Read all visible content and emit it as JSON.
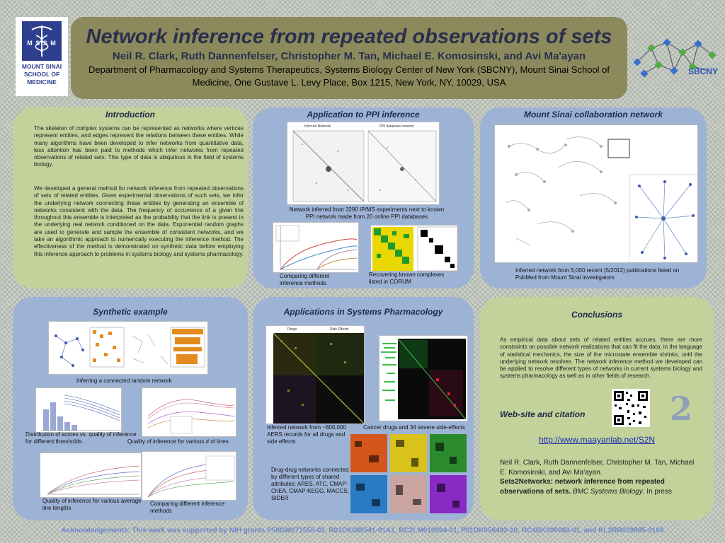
{
  "header": {
    "title": "Network inference from repeated observations of sets",
    "authors": "Neil R. Clark, Ruth Dannenfelser, Christopher M. Tan, Michael E. Komosinski, and Avi Ma'ayan",
    "affiliation": "Department of Pharmacology and Systems Therapeutics, Systems Biology Center of New York (SBCNY), Mount Sinai School of Medicine, One Gustave L. Levy Place, Box 1215, New York, NY, 10029, USA"
  },
  "logos": {
    "left_mark": "M S S M",
    "left_line1": "MOUNT SINAI",
    "left_line2": "SCHOOL OF",
    "left_line3": "MEDICINE",
    "right_text": "SBCNY"
  },
  "introduction": {
    "title": "Introduction",
    "p1": "The skeleton of complex systems can be represented as networks where vertices represent entities, and edges represent the relations between these entities. While many algorithms have been developed to infer networks from quantitative data, less attention has been paid to methods which infer networks from repeated observations of related sets. This type of data is ubiquitous in the field of systems biology.",
    "p2": "We developed a general method for network inference from repeated observations of sets of related entities. Given experimental observations of such sets, we infer the underlying network connecting these entities by generating an ensemble of networks consistent with the data. The frequency of occurrence of a given link throughout this ensemble is interpreted as the probability that the link is present in the underlying real network conditioned on the data. Exponential random graphs are used to generate and sample the ensemble of consistent networks, and we take an algorithmic approach to numerically executing the inference method. The effectiveness of the method is demonstrated on synthetic data before employing this inference approach to problems in systems biology and systems pharmacology."
  },
  "ppi": {
    "title": "Application to PPI inference",
    "fig1_label_a": "Inferred Network",
    "fig1_label_b": "PPI database network",
    "cap1": "Network inferred from 3290 IP/MS experiments next to known PPI network made from 20 online PPI databases",
    "cap2": "Comparing different inference methods",
    "cap3": "Recovering known complexes listed in CORUM"
  },
  "collab": {
    "title": "Mount Sinai collaboration network",
    "cap": "Inferred network from 5,000 recent (5/2012) publications listed on PubMed from Mount Sinai investigators"
  },
  "synthetic": {
    "title": "Synthetic example",
    "cap1": "Inferring a connected random network",
    "cap2": "Distribution of scores vs. quality of inference for different thresholds",
    "cap3": "Quality of inference for various # of lines",
    "cap4": "Quality of inference for various average line lengths",
    "cap5": "Comparing different inference methods"
  },
  "pharm": {
    "title": "Applications in Systems Pharmacology",
    "cap1": "Inferred network from ~800,000 AERS records for all drugs and side effects",
    "cap2": "Cancer drugs and 34 severe side-effects",
    "cap3": "Drug-drug networks connected by different types of shared attributes: ARES, ATC, CMAP-ChEA, CMAP-KEGG, MACCS, SIDER",
    "heat_label_a": "Drugs",
    "heat_label_b": "Side Effects"
  },
  "conclusions": {
    "title": "Conclusions",
    "text": "As empirical data about sets of related entities accrues, there are more constraints on possible network realizations that can fit the data; in the language of statistical mechanics, the size of the microstate ensemble shrinks, until the underlying network resolves. The network inference method we developed can be applied to resolve different types of networks in current systems biology and systems pharmacology as well as in other fields of research.",
    "web_title": "Web-site and citation",
    "url": "http://www.maayanlab.net/S2N",
    "cite_authors": "Neil R. Clark, Ruth Dannenfelser, Christopher M. Tan, Michael E. Komosinski, and Avi Ma'ayan.",
    "cite_title": "Sets2Networks: network inference from repeated observations of sets.",
    "cite_journal": "BMC Systems Biology",
    "cite_status": ". In press",
    "s2n_mark": "2"
  },
  "ack": "Acknowledgements: This work was supported by NIH grants P50GM071558-03, R01DK088541-01A1, RC2LM010994-01, P01DK056492-10, RC4DK090860-01, and KL2RR029885-0109",
  "colors": {
    "green_panel": "#c3d19a",
    "blue_panel": "#9db3d6",
    "header": "#8c8a5c",
    "title_text": "#2a2f4d"
  }
}
